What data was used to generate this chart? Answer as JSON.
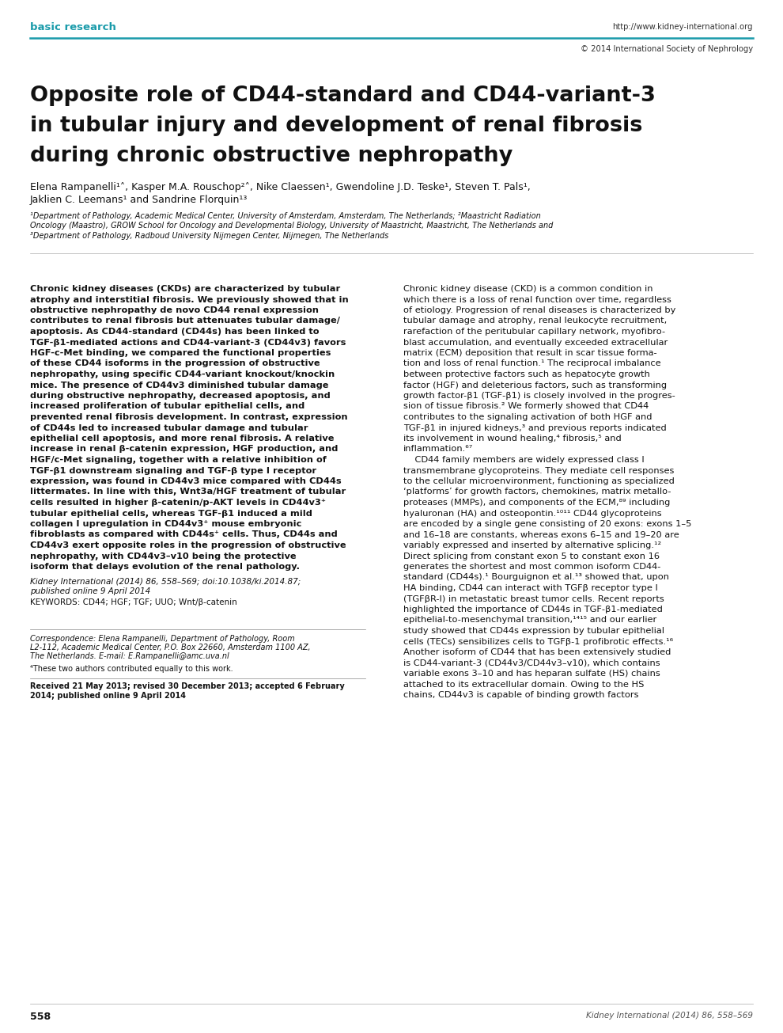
{
  "bg_color": "#ffffff",
  "header_label": "basic research",
  "header_url": "http://www.kidney-international.org",
  "header_copyright": "© 2014 International Society of Nephrology",
  "header_color": "#1a9baa",
  "line_color": "#1a9baa",
  "title_line1": "Opposite role of CD44-standard and CD44-variant-3",
  "title_line2": "in tubular injury and development of renal fibrosis",
  "title_line3": "during chronic obstructive nephropathy",
  "author_line1": "Elena Rampanelli¹˄, Kasper M.A. Rouschop²˄, Nike Claessen¹, Gwendoline J.D. Teske¹, Steven T. Pals¹,",
  "author_line2": "Jaklien C. Leemans¹ and Sandrine Florquin¹³",
  "affil_line1": "¹Department of Pathology, Academic Medical Center, University of Amsterdam, Amsterdam, The Netherlands; ²Maastricht Radiation",
  "affil_line2": "Oncology (Maastro), GROW School for Oncology and Developmental Biology, University of Maastricht, Maastricht, The Netherlands and",
  "affil_line3": "³Department of Pathology, Radboud University Nijmegen Center, Nijmegen, The Netherlands",
  "abstract_lines": [
    "Chronic kidney diseases (CKDs) are characterized by tubular",
    "atrophy and interstitial fibrosis. We previously showed that in",
    "obstructive nephropathy de novo CD44 renal expression",
    "contributes to renal fibrosis but attenuates tubular damage/",
    "apoptosis. As CD44-standard (CD44s) has been linked to",
    "TGF-β1-mediated actions and CD44-variant-3 (CD44v3) favors",
    "HGF-c-Met binding, we compared the functional properties",
    "of these CD44 isoforms in the progression of obstructive",
    "nephropathy, using specific CD44-variant knockout/knockin",
    "mice. The presence of CD44v3 diminished tubular damage",
    "during obstructive nephropathy, decreased apoptosis, and",
    "increased proliferation of tubular epithelial cells, and",
    "prevented renal fibrosis development. In contrast, expression",
    "of CD44s led to increased tubular damage and tubular",
    "epithelial cell apoptosis, and more renal fibrosis. A relative",
    "increase in renal β-catenin expression, HGF production, and",
    "HGF/c-Met signaling, together with a relative inhibition of",
    "TGF-β1 downstream signaling and TGF-β type I receptor",
    "expression, was found in CD44v3 mice compared with CD44s",
    "littermates. In line with this, Wnt3a/HGF treatment of tubular",
    "cells resulted in higher β-catenin/p-AKT levels in CD44v3⁺",
    "tubular epithelial cells, whereas TGF-β1 induced a mild",
    "collagen I upregulation in CD44v3⁺ mouse embryonic",
    "fibroblasts as compared with CD44s⁺ cells. Thus, CD44s and",
    "CD44v3 exert opposite roles in the progression of obstructive",
    "nephropathy, with CD44v3–v10 being the protective",
    "isoform that delays evolution of the renal pathology."
  ],
  "journal_cite_line1": "Kidney International (2014) 86, 558–569; doi:10.1038/ki.2014.87;",
  "journal_cite_line2": "published online 9 April 2014",
  "keywords": "KEYWORDS: CD44; HGF; TGF; UUO; Wnt/β-catenin",
  "corr_line1": "Correspondence: Elena Rampanelli, Department of Pathology, Room",
  "corr_line2": "L2-112, Academic Medical Center, P.O. Box 22660, Amsterdam 1100 AZ,",
  "corr_line3": "The Netherlands. E-mail: E.Rampanelli@amc.uva.nl",
  "footnote": "⁴These two authors contributed equally to this work.",
  "received_line1": "Received 21 May 2013; revised 30 December 2013; accepted 6 February",
  "received_line2": "2014; published online 9 April 2014",
  "page_number_left": "558",
  "page_number_right": "Kidney International (2014) 86, 558–569",
  "right_col_lines": [
    "Chronic kidney disease (CKD) is a common condition in",
    "which there is a loss of renal function over time, regardless",
    "of etiology. Progression of renal diseases is characterized by",
    "tubular damage and atrophy, renal leukocyte recruitment,",
    "rarefaction of the peritubular capillary network, myofibro-",
    "blast accumulation, and eventually exceeded extracellular",
    "matrix (ECM) deposition that result in scar tissue forma-",
    "tion and loss of renal function.¹ The reciprocal imbalance",
    "between protective factors such as hepatocyte growth",
    "factor (HGF) and deleterious factors, such as transforming",
    "growth factor-β1 (TGF-β1) is closely involved in the progres-",
    "sion of tissue fibrosis.² We formerly showed that CD44",
    "contributes to the signaling activation of both HGF and",
    "TGF-β1 in injured kidneys,³ and previous reports indicated",
    "its involvement in wound healing,⁴ fibrosis,⁵ and",
    "inflammation.⁶⁷",
    "    CD44 family members are widely expressed class I",
    "transmembrane glycoproteins. They mediate cell responses",
    "to the cellular microenvironment, functioning as specialized",
    "‘platforms’ for growth factors, chemokines, matrix metallo-",
    "proteases (MMPs), and components of the ECM,⁸⁹ including",
    "hyaluronan (HA) and osteopontin.¹⁰¹¹ CD44 glycoproteins",
    "are encoded by a single gene consisting of 20 exons: exons 1–5",
    "and 16–18 are constants, whereas exons 6–15 and 19–20 are",
    "variably expressed and inserted by alternative splicing.¹²",
    "Direct splicing from constant exon 5 to constant exon 16",
    "generates the shortest and most common isoform CD44-",
    "standard (CD44s).¹ Bourguignon et al.¹³ showed that, upon",
    "HA binding, CD44 can interact with TGFβ receptor type I",
    "(TGFβR-I) in metastatic breast tumor cells. Recent reports",
    "highlighted the importance of CD44s in TGF-β1-mediated",
    "epithelial-to-mesenchymal transition,¹⁴¹⁵ and our earlier",
    "study showed that CD44s expression by tubular epithelial",
    "cells (TECs) sensibilizes cells to TGFβ-1 profibrotic effects.¹⁶",
    "Another isoform of CD44 that has been extensively studied",
    "is CD44-variant-3 (CD44v3/CD44v3–v10), which contains",
    "variable exons 3–10 and has heparan sulfate (HS) chains",
    "attached to its extracellular domain. Owing to the HS",
    "chains, CD44v3 is capable of binding growth factors"
  ]
}
